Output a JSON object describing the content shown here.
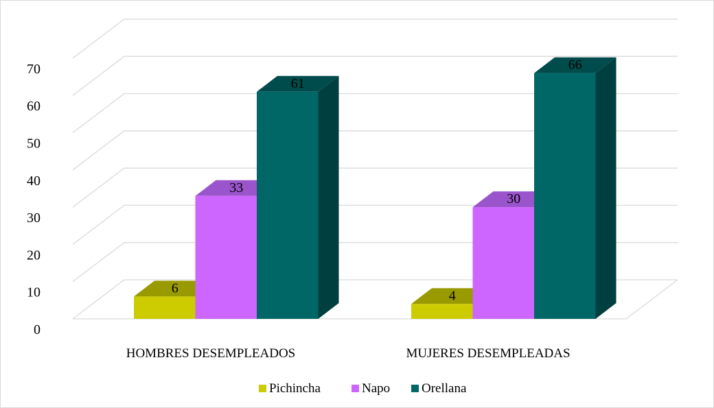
{
  "chart_data": {
    "type": "bar",
    "style": "3d-clustered-column",
    "categories": [
      "HOMBRES DESEMPLEADOS",
      "MUJERES DESEMPLEADAS"
    ],
    "series": [
      {
        "name": "Pichincha",
        "values": [
          6,
          4
        ],
        "color": "#cccc00",
        "top_color": "#999900",
        "side_color": "#999900"
      },
      {
        "name": "Napo",
        "values": [
          33,
          30
        ],
        "color": "#cc66ff",
        "top_color": "#9b55cc",
        "side_color": "#9b55cc"
      },
      {
        "name": "Orellana",
        "values": [
          61,
          66
        ],
        "color": "#006666",
        "top_color": "#004c4c",
        "side_color": "#003f3f"
      }
    ],
    "ylim": [
      0,
      70
    ],
    "yticks": [
      0,
      10,
      20,
      30,
      40,
      50,
      60,
      70
    ],
    "grid": true,
    "legend": "bottom",
    "data_labels": true,
    "title": "",
    "xlabel": "",
    "ylabel": ""
  }
}
